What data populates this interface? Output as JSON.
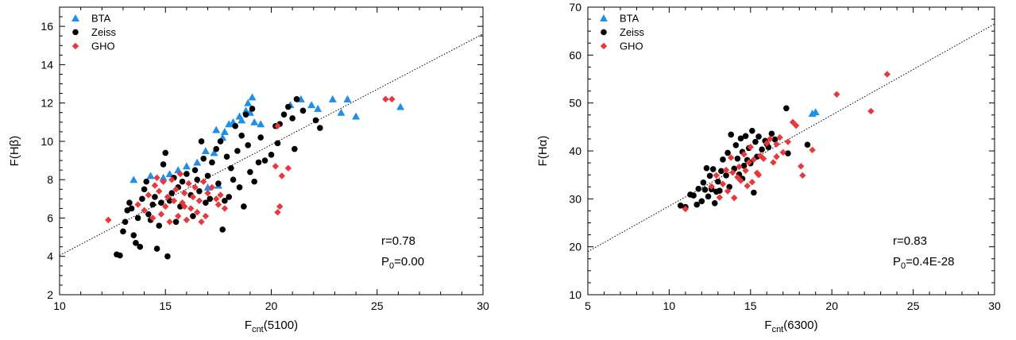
{
  "chart_data": [
    {
      "type": "scatter",
      "xlabel_main": "F",
      "xlabel_sub": "cnt",
      "xlabel_rest": "(5100)",
      "ylabel_main": "F(H",
      "ylabel_greek": "β",
      "ylabel_rest": ")",
      "xlim": [
        10,
        30
      ],
      "ylim": [
        2,
        17
      ],
      "x_ticks": [
        10,
        15,
        20,
        25,
        30
      ],
      "y_ticks": [
        2,
        4,
        6,
        8,
        10,
        12,
        14,
        16
      ],
      "legend": {
        "position": "top-left"
      },
      "fit_line": [
        [
          10,
          4.05
        ],
        [
          30,
          15.6
        ]
      ],
      "annotation": {
        "r": "r=0.78",
        "p_main": "P",
        "p_sub": "0",
        "p_val": "=0.00"
      },
      "series": [
        {
          "name": "BTA",
          "marker": "triangle",
          "color": "#1f8fe8",
          "points": [
            [
              13.5,
              8.0
            ],
            [
              14.3,
              8.2
            ],
            [
              14.9,
              8.1
            ],
            [
              15.2,
              8.3
            ],
            [
              15.6,
              8.5
            ],
            [
              16.0,
              8.7
            ],
            [
              16.5,
              8.9
            ],
            [
              17.0,
              7.6
            ],
            [
              17.5,
              7.7
            ],
            [
              17.3,
              9.4
            ],
            [
              17.7,
              10.2
            ],
            [
              17.8,
              10.5
            ],
            [
              18.2,
              11.0
            ],
            [
              18.5,
              11.3
            ],
            [
              18.8,
              11.6
            ],
            [
              18.9,
              12.0
            ],
            [
              19.1,
              12.3
            ],
            [
              19.2,
              11.0
            ],
            [
              19.5,
              10.9
            ],
            [
              18.6,
              11.1
            ],
            [
              19.0,
              11.5
            ],
            [
              20.9,
              11.9
            ],
            [
              21.4,
              12.2
            ],
            [
              21.9,
              11.9
            ],
            [
              22.2,
              11.7
            ],
            [
              22.9,
              12.2
            ],
            [
              23.3,
              11.5
            ],
            [
              23.6,
              12.2
            ],
            [
              24.0,
              11.3
            ],
            [
              26.1,
              11.8
            ],
            [
              17.4,
              10.6
            ],
            [
              18.0,
              10.9
            ],
            [
              16.9,
              9.5
            ]
          ]
        },
        {
          "name": "Zeiss",
          "marker": "circle",
          "color": "#000000",
          "points": [
            [
              12.7,
              4.1
            ],
            [
              12.85,
              4.05
            ],
            [
              13.0,
              5.3
            ],
            [
              13.1,
              5.8
            ],
            [
              13.2,
              6.4
            ],
            [
              13.3,
              6.8
            ],
            [
              13.4,
              6.5
            ],
            [
              13.5,
              5.1
            ],
            [
              13.6,
              4.7
            ],
            [
              13.8,
              4.5
            ],
            [
              13.9,
              7.0
            ],
            [
              14.0,
              7.5
            ],
            [
              14.1,
              7.9
            ],
            [
              14.2,
              6.2
            ],
            [
              14.3,
              5.9
            ],
            [
              14.5,
              7.1
            ],
            [
              14.6,
              4.4
            ],
            [
              14.7,
              5.6
            ],
            [
              14.8,
              6.8
            ],
            [
              14.9,
              8.8
            ],
            [
              15.0,
              9.4
            ],
            [
              15.1,
              4.0
            ],
            [
              15.2,
              6.9
            ],
            [
              15.3,
              7.3
            ],
            [
              15.4,
              8.1
            ],
            [
              15.6,
              7.6
            ],
            [
              15.7,
              6.6
            ],
            [
              15.8,
              7.9
            ],
            [
              16.0,
              8.3
            ],
            [
              16.2,
              7.2
            ],
            [
              16.3,
              6.1
            ],
            [
              16.4,
              8.5
            ],
            [
              16.5,
              8.0
            ],
            [
              16.6,
              7.4
            ],
            [
              16.8,
              9.1
            ],
            [
              16.9,
              6.8
            ],
            [
              17.0,
              8.2
            ],
            [
              17.1,
              7.0
            ],
            [
              17.2,
              8.9
            ],
            [
              17.4,
              9.6
            ],
            [
              17.5,
              7.8
            ],
            [
              17.6,
              10.0
            ],
            [
              17.7,
              5.4
            ],
            [
              17.9,
              9.2
            ],
            [
              18.0,
              7.1
            ],
            [
              18.1,
              8.6
            ],
            [
              18.3,
              10.8
            ],
            [
              18.4,
              9.5
            ],
            [
              18.5,
              7.6
            ],
            [
              18.6,
              10.3
            ],
            [
              18.7,
              6.6
            ],
            [
              18.8,
              11.4
            ],
            [
              18.9,
              9.8
            ],
            [
              19.0,
              8.4
            ],
            [
              19.2,
              7.9
            ],
            [
              19.4,
              8.9
            ],
            [
              19.5,
              10.2
            ],
            [
              19.7,
              9.0
            ],
            [
              20.0,
              9.3
            ],
            [
              20.2,
              10.8
            ],
            [
              20.4,
              10.9
            ],
            [
              20.6,
              11.4
            ],
            [
              20.8,
              11.8
            ],
            [
              21.0,
              11.2
            ],
            [
              21.2,
              12.2
            ],
            [
              21.1,
              9.6
            ],
            [
              21.5,
              11.6
            ],
            [
              22.3,
              10.7
            ],
            [
              22.1,
              11.1
            ],
            [
              18.2,
              8.0
            ],
            [
              16.7,
              10.0
            ],
            [
              15.5,
              5.8
            ],
            [
              14.4,
              6.7
            ],
            [
              13.7,
              6.0
            ],
            [
              17.8,
              6.9
            ],
            [
              19.1,
              11.7
            ],
            [
              20.3,
              9.9
            ]
          ]
        },
        {
          "name": "GHO",
          "marker": "diamond",
          "color": "#e8383b",
          "points": [
            [
              12.3,
              5.9
            ],
            [
              13.7,
              6.7
            ],
            [
              14.0,
              6.4
            ],
            [
              14.2,
              7.2
            ],
            [
              14.4,
              6.0
            ],
            [
              14.5,
              7.7
            ],
            [
              14.7,
              7.4
            ],
            [
              14.8,
              6.2
            ],
            [
              14.9,
              7.9
            ],
            [
              15.0,
              6.6
            ],
            [
              15.1,
              7.1
            ],
            [
              15.2,
              5.8
            ],
            [
              15.3,
              8.0
            ],
            [
              15.4,
              6.9
            ],
            [
              15.5,
              7.5
            ],
            [
              15.6,
              6.1
            ],
            [
              15.7,
              8.3
            ],
            [
              15.8,
              6.8
            ],
            [
              15.9,
              7.3
            ],
            [
              16.0,
              5.9
            ],
            [
              16.1,
              7.8
            ],
            [
              16.2,
              6.5
            ],
            [
              16.3,
              7.1
            ],
            [
              16.4,
              7.6
            ],
            [
              16.5,
              6.3
            ],
            [
              16.6,
              6.9
            ],
            [
              16.7,
              5.8
            ],
            [
              16.8,
              7.9
            ],
            [
              16.9,
              6.1
            ],
            [
              17.0,
              7.3
            ],
            [
              17.2,
              7.6
            ],
            [
              17.4,
              7.0
            ],
            [
              17.5,
              6.7
            ],
            [
              17.6,
              7.2
            ],
            [
              17.8,
              6.5
            ],
            [
              20.2,
              8.7
            ],
            [
              20.3,
              6.3
            ],
            [
              20.4,
              6.6
            ],
            [
              20.5,
              8.2
            ],
            [
              20.8,
              8.6
            ],
            [
              25.4,
              12.2
            ],
            [
              25.7,
              12.2
            ],
            [
              20.3,
              10.8
            ],
            [
              14.6,
              8.1
            ],
            [
              15.9,
              6.6
            ]
          ]
        }
      ]
    },
    {
      "type": "scatter",
      "xlabel_main": "F",
      "xlabel_sub": "cnt",
      "xlabel_rest": "(6300)",
      "ylabel_main": "F(H",
      "ylabel_greek": "α",
      "ylabel_rest": ")",
      "xlim": [
        5,
        30
      ],
      "ylim": [
        10,
        70
      ],
      "x_ticks": [
        5,
        10,
        15,
        20,
        25,
        30
      ],
      "y_ticks": [
        10,
        20,
        30,
        40,
        50,
        60,
        70
      ],
      "legend": {
        "position": "top-left"
      },
      "fit_line": [
        [
          5,
          19.0
        ],
        [
          30,
          66.5
        ]
      ],
      "annotation": {
        "r": "r=0.83",
        "p_main": "P",
        "p_sub": "0",
        "p_val": "=0.4E-28"
      },
      "series": [
        {
          "name": "BTA",
          "marker": "triangle",
          "color": "#1f8fe8",
          "points": [
            [
              18.8,
              47.8
            ],
            [
              19.0,
              48.1
            ]
          ]
        },
        {
          "name": "Zeiss",
          "marker": "circle",
          "color": "#000000",
          "points": [
            [
              10.7,
              28.6
            ],
            [
              11.0,
              28.3
            ],
            [
              11.3,
              30.9
            ],
            [
              11.5,
              30.7
            ],
            [
              11.7,
              28.8
            ],
            [
              11.8,
              32.1
            ],
            [
              12.0,
              29.5
            ],
            [
              12.1,
              33.4
            ],
            [
              12.2,
              31.9
            ],
            [
              12.3,
              36.4
            ],
            [
              12.5,
              34.8
            ],
            [
              12.6,
              32.0
            ],
            [
              12.7,
              36.2
            ],
            [
              12.8,
              29.1
            ],
            [
              12.9,
              31.5
            ],
            [
              13.0,
              33.6
            ],
            [
              13.2,
              35.8
            ],
            [
              13.3,
              38.2
            ],
            [
              13.5,
              34.9
            ],
            [
              13.6,
              39.6
            ],
            [
              13.7,
              32.5
            ],
            [
              13.8,
              43.4
            ],
            [
              14.0,
              36.3
            ],
            [
              14.1,
              41.2
            ],
            [
              14.2,
              38.4
            ],
            [
              14.3,
              35.1
            ],
            [
              14.4,
              42.6
            ],
            [
              14.5,
              39.8
            ],
            [
              14.6,
              36.9
            ],
            [
              14.7,
              43.1
            ],
            [
              14.8,
              38.1
            ],
            [
              14.9,
              40.6
            ],
            [
              15.0,
              37.4
            ],
            [
              15.1,
              44.2
            ],
            [
              15.2,
              31.3
            ],
            [
              15.3,
              41.9
            ],
            [
              15.4,
              38.8
            ],
            [
              15.5,
              43.0
            ],
            [
              15.7,
              40.3
            ],
            [
              15.9,
              42.1
            ],
            [
              16.1,
              40.8
            ],
            [
              16.3,
              43.6
            ],
            [
              16.5,
              42.4
            ],
            [
              17.2,
              48.9
            ],
            [
              17.3,
              39.5
            ],
            [
              18.5,
              41.3
            ],
            [
              13.1,
              31.7
            ],
            [
              14.5,
              34.2
            ],
            [
              12.4,
              30.5
            ],
            [
              16.0,
              41.5
            ]
          ]
        },
        {
          "name": "GHO",
          "marker": "diamond",
          "color": "#e8383b",
          "points": [
            [
              11.0,
              27.9
            ],
            [
              12.6,
              32.6
            ],
            [
              12.9,
              34.9
            ],
            [
              13.1,
              30.3
            ],
            [
              13.3,
              33.1
            ],
            [
              13.5,
              36.0
            ],
            [
              13.6,
              31.6
            ],
            [
              13.8,
              38.6
            ],
            [
              13.9,
              35.5
            ],
            [
              14.0,
              30.2
            ],
            [
              14.2,
              34.5
            ],
            [
              14.3,
              36.7
            ],
            [
              14.4,
              33.8
            ],
            [
              14.6,
              39.3
            ],
            [
              14.7,
              35.9
            ],
            [
              14.8,
              32.7
            ],
            [
              14.9,
              37.6
            ],
            [
              15.0,
              40.8
            ],
            [
              15.1,
              33.5
            ],
            [
              15.2,
              38.2
            ],
            [
              15.4,
              35.4
            ],
            [
              15.6,
              39.0
            ],
            [
              15.8,
              38.4
            ],
            [
              16.0,
              41.6
            ],
            [
              16.2,
              42.5
            ],
            [
              16.4,
              37.6
            ],
            [
              16.6,
              38.8
            ],
            [
              16.8,
              42.8
            ],
            [
              17.0,
              39.7
            ],
            [
              17.3,
              41.9
            ],
            [
              17.6,
              46.0
            ],
            [
              17.8,
              45.3
            ],
            [
              18.1,
              36.8
            ],
            [
              18.2,
              34.9
            ],
            [
              18.8,
              40.2
            ],
            [
              20.3,
              51.8
            ],
            [
              22.4,
              48.3
            ],
            [
              23.4,
              56.0
            ],
            [
              15.5,
              35.0
            ],
            [
              16.6,
              41.4
            ]
          ]
        }
      ]
    }
  ]
}
